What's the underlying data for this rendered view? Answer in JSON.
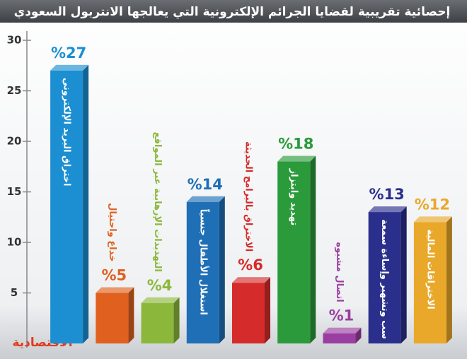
{
  "chart_data": {
    "type": "bar",
    "title": "إحصائية تقريبية لقضايا الجرائم الإلكترونية التي يعالجها الانتربول السعودي",
    "brand": "الاقتصادية",
    "categories": [
      "اختراق البريد الإلكتروني",
      "خداع واحتيال",
      "التهديدات الإرهابية عبر المواقع",
      "استغلال الأطفال جنسياً",
      "الاختراق بالبرامج الحديثة",
      "تهديد وابتزاز",
      "اتصال مشبوه",
      "سب وتشهير وإساءة سمعة",
      "الاختراقات المالية"
    ],
    "values": [
      27,
      5,
      4,
      14,
      6,
      18,
      1,
      13,
      12
    ],
    "value_labels": [
      "%27",
      "%5",
      "%4",
      "%14",
      "%6",
      "%18",
      "%1",
      "%13",
      "%12"
    ],
    "colors": [
      "#1b8fd2",
      "#e0611f",
      "#8bb83b",
      "#1f6fb6",
      "#d62b2b",
      "#2b9a3b",
      "#9b3ea1",
      "#2b2f8c",
      "#e9a82a"
    ],
    "ylim": [
      0,
      30
    ],
    "yticks": [
      5,
      10,
      15,
      20,
      25,
      30
    ]
  }
}
